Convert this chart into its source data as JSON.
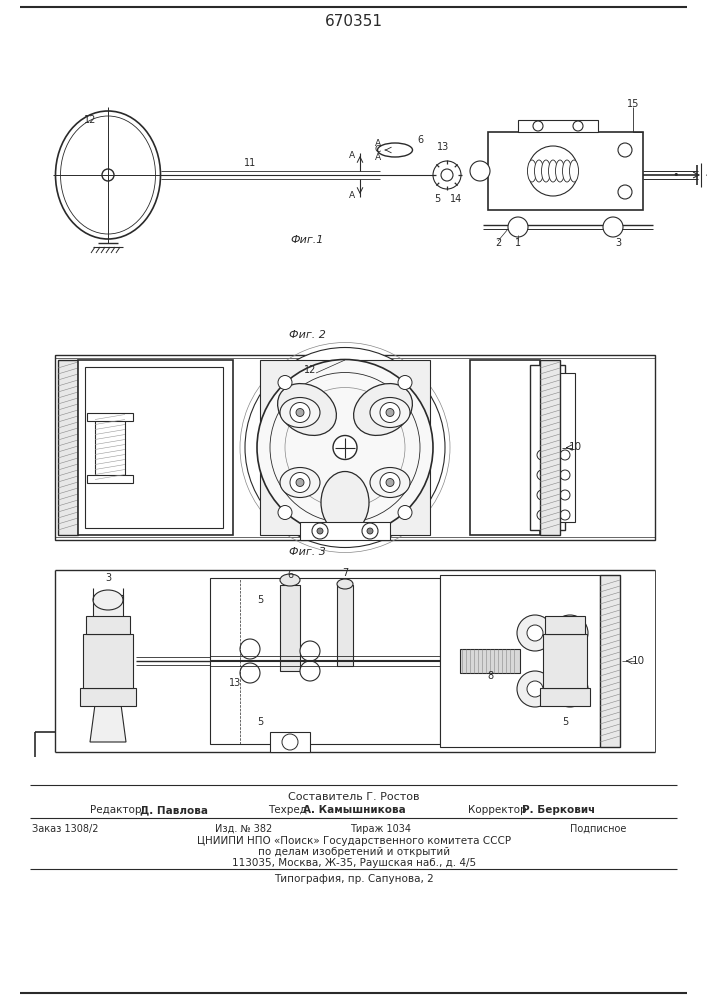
{
  "title": "670351",
  "background_color": "#ffffff",
  "fig1_caption": "Фиг.1",
  "fig2_caption": "Фиг. 2",
  "fig3_caption": "Фиг. 3",
  "line_color": "#2a2a2a",
  "text_color": "#2a2a2a",
  "footer": {
    "line1": "Составитель Г. Ростов",
    "line2_left": "Редактор Д. Павлова",
    "line2_mid": "Техред А. Камышникова",
    "line2_right": "Корректор Р. Беркович",
    "order": "Заказ 1308/2",
    "izd": "Изд. № 382",
    "tirazh": "Тираж 1034",
    "podp": "Подписное",
    "cniip1": "ЦНИИПИ НПО «Поиск» Государственного комитета СССР",
    "cniip2": "по делам изобретений и открытий",
    "addr": "113035, Москва, Ж-35, Раушская наб., д. 4/5",
    "tipogr": "Типография, пр. Сапунова, 2"
  }
}
